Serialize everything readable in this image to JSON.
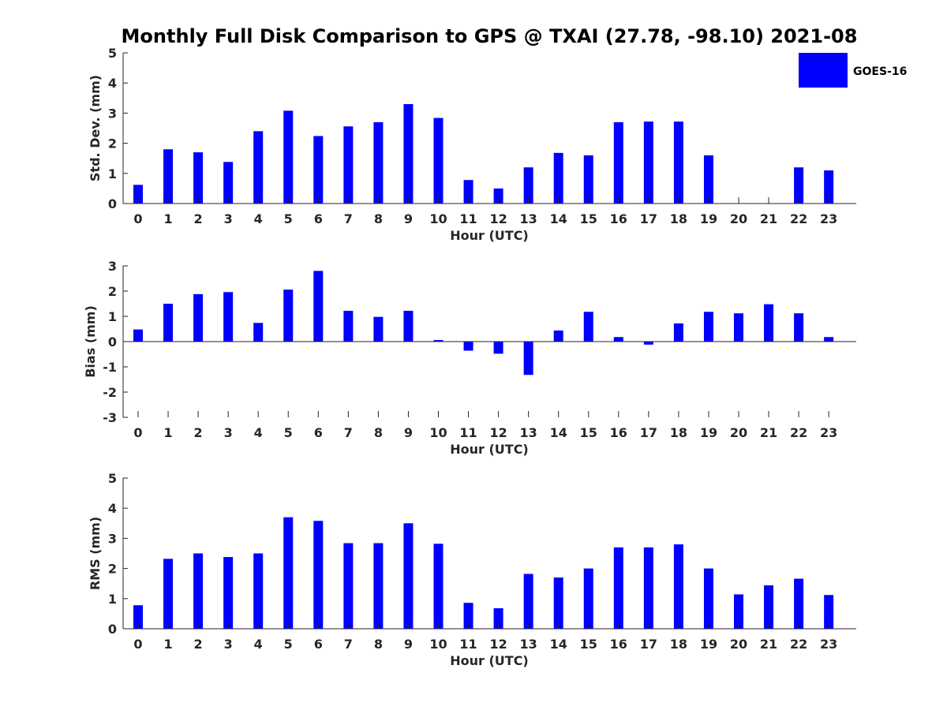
{
  "figure": {
    "title": "Monthly Full Disk Comparison to GPS @ TXAI (27.78, -98.10) 2021-08",
    "legend": {
      "label": "GOES-16",
      "color": "#0000ff",
      "placement": "top-right"
    },
    "bar_color": "#0000ff"
  },
  "chart_data": [
    {
      "type": "bar",
      "name": "std-dev",
      "title": "Monthly Full Disk Comparison to GPS @ TXAI (27.78, -98.10) 2021-08",
      "xlabel": "Hour (UTC)",
      "ylabel": "Std. Dev. (mm)",
      "categories": [
        "0",
        "1",
        "2",
        "3",
        "4",
        "5",
        "6",
        "7",
        "8",
        "9",
        "10",
        "11",
        "12",
        "13",
        "14",
        "15",
        "16",
        "17",
        "18",
        "19",
        "20",
        "21",
        "22",
        "23"
      ],
      "series": [
        {
          "name": "GOES-16",
          "values": [
            0.62,
            1.8,
            1.7,
            1.38,
            2.4,
            3.08,
            2.24,
            2.56,
            2.7,
            3.3,
            2.84,
            0.78,
            0.5,
            1.2,
            1.68,
            1.6,
            2.7,
            2.72,
            2.72,
            1.6,
            0,
            0,
            1.2,
            1.1
          ]
        }
      ],
      "ylim": [
        0,
        5
      ],
      "yticks": [
        0,
        1,
        2,
        3,
        4,
        5
      ]
    },
    {
      "type": "bar",
      "name": "bias",
      "xlabel": "Hour (UTC)",
      "ylabel": "Bias (mm)",
      "categories": [
        "0",
        "1",
        "2",
        "3",
        "4",
        "5",
        "6",
        "7",
        "8",
        "9",
        "10",
        "11",
        "12",
        "13",
        "14",
        "15",
        "16",
        "17",
        "18",
        "19",
        "20",
        "21",
        "22",
        "23"
      ],
      "series": [
        {
          "name": "GOES-16",
          "values": [
            0.48,
            1.5,
            1.88,
            1.96,
            0.74,
            2.06,
            2.8,
            1.22,
            0.98,
            1.22,
            0.06,
            -0.36,
            -0.48,
            -1.32,
            0.44,
            1.18,
            0.18,
            -0.12,
            0.72,
            1.18,
            1.12,
            1.48,
            1.12,
            0.18
          ]
        }
      ],
      "ylim": [
        -3,
        3
      ],
      "yticks": [
        -3,
        -2,
        -1,
        0,
        1,
        2,
        3
      ]
    },
    {
      "type": "bar",
      "name": "rms",
      "xlabel": "Hour (UTC)",
      "ylabel": "RMS (mm)",
      "categories": [
        "0",
        "1",
        "2",
        "3",
        "4",
        "5",
        "6",
        "7",
        "8",
        "9",
        "10",
        "11",
        "12",
        "13",
        "14",
        "15",
        "16",
        "17",
        "18",
        "19",
        "20",
        "21",
        "22",
        "23"
      ],
      "series": [
        {
          "name": "GOES-16",
          "values": [
            0.78,
            2.32,
            2.5,
            2.38,
            2.5,
            3.7,
            3.58,
            2.84,
            2.84,
            3.5,
            2.82,
            0.86,
            0.68,
            1.82,
            1.7,
            2.0,
            2.7,
            2.7,
            2.8,
            2.0,
            1.14,
            1.44,
            1.66,
            1.12
          ]
        }
      ],
      "ylim": [
        0,
        5
      ],
      "yticks": [
        0,
        1,
        2,
        3,
        4,
        5
      ]
    }
  ]
}
